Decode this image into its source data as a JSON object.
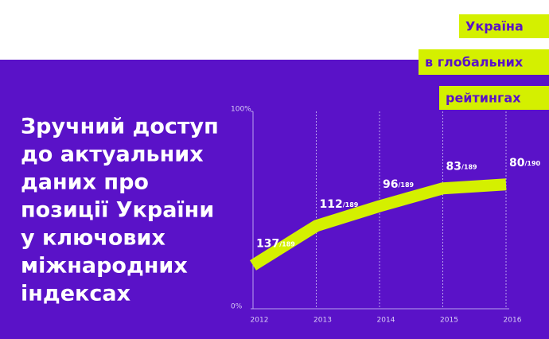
{
  "banner": [
    "Україна",
    "в глобальних",
    "рейтингах"
  ],
  "headline": [
    "Зручний доступ",
    "до актуальних",
    "даних про",
    "позиції України",
    "у ключових",
    "міжнародних",
    "індексах"
  ],
  "chart_data": {
    "type": "line",
    "categories": [
      "2012",
      "2013",
      "2014",
      "2015",
      "2016"
    ],
    "values": [
      22,
      42,
      52,
      61,
      63
    ],
    "labels": [
      {
        "rank": 137,
        "total": "/189"
      },
      {
        "rank": 112,
        "total": "/189"
      },
      {
        "rank": 96,
        "total": "/189"
      },
      {
        "rank": 83,
        "total": "/189"
      },
      {
        "rank": 80,
        "total": "/190"
      }
    ],
    "color": "#d4f000",
    "ylim": [
      0,
      100
    ],
    "yticks": [
      {
        "value": 0,
        "label": "0%"
      },
      {
        "value": 100,
        "label": "100%"
      }
    ],
    "grid": true
  }
}
